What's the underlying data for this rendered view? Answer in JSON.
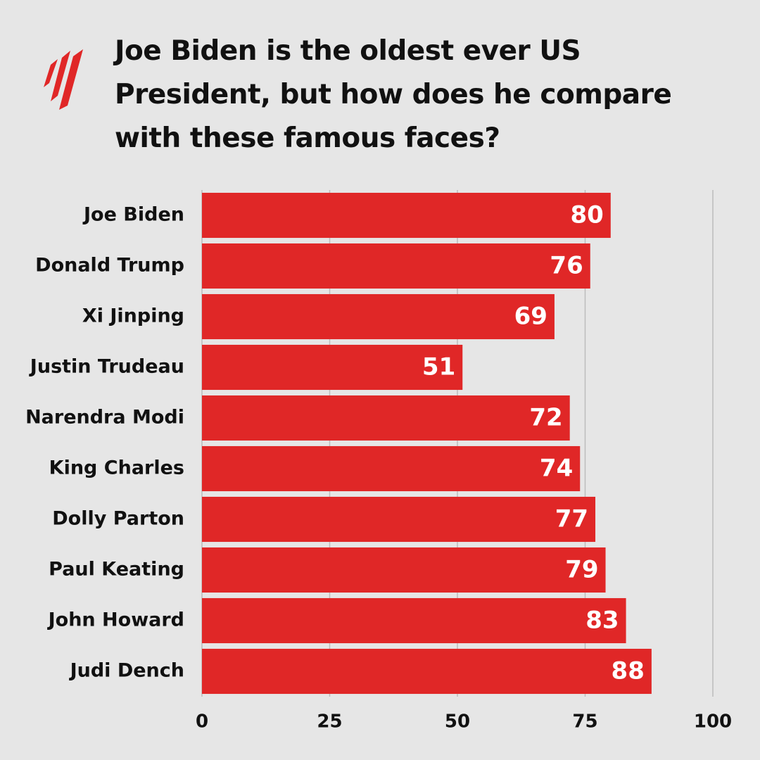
{
  "chart_data": {
    "type": "bar",
    "orientation": "horizontal",
    "title": "Joe Biden is the oldest ever US President, but how does he compare with these famous faces?",
    "categories": [
      "Joe Biden",
      "Donald Trump",
      "Xi Jinping",
      "Justin Trudeau",
      "Narendra Modi",
      "King Charles",
      "Dolly Parton",
      "Paul Keating",
      "John Howard",
      "Judi Dench"
    ],
    "values": [
      80,
      76,
      69,
      51,
      72,
      74,
      77,
      79,
      83,
      88
    ],
    "color": "#e02727",
    "xlim": [
      0,
      100
    ],
    "xticks": [
      0,
      25,
      50,
      75,
      100
    ],
    "grid": true
  }
}
